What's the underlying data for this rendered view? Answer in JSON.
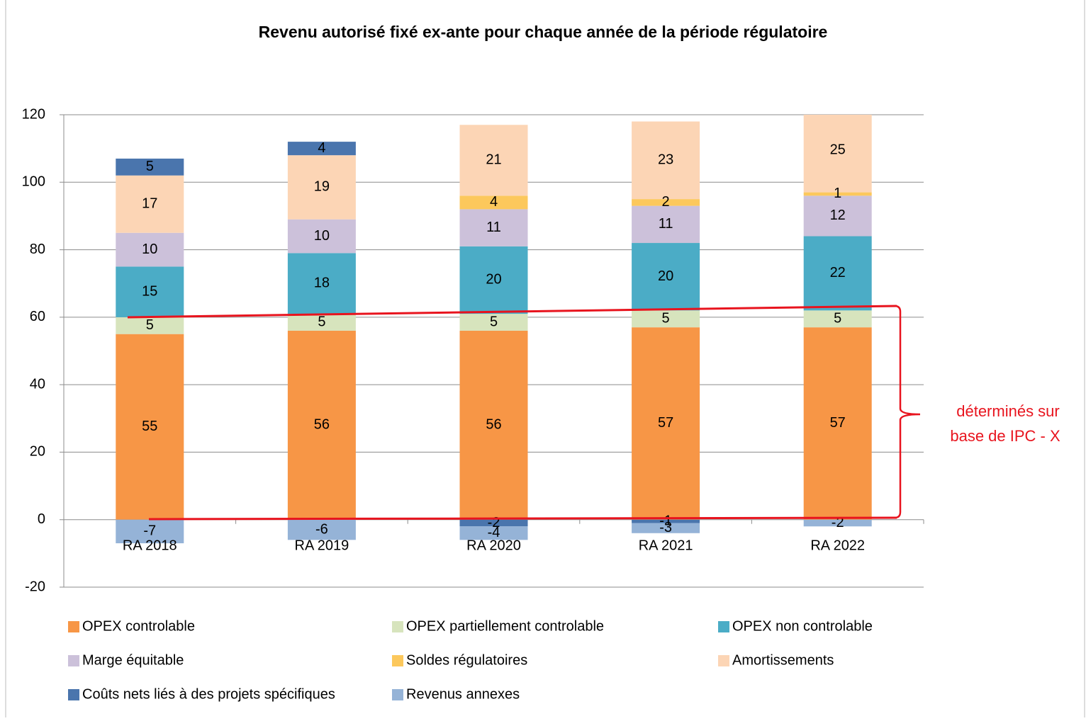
{
  "chart_data": {
    "type": "stacked_bar",
    "title": "Revenu autorisé fixé ex-ante pour chaque année de la période régulatoire",
    "categories": [
      "RA 2018",
      "RA 2019",
      "RA 2020",
      "RA 2021",
      "RA 2022"
    ],
    "series": [
      {
        "name": "OPEX controlable",
        "color": "#f79646",
        "values": [
          55,
          56,
          56,
          57,
          57
        ]
      },
      {
        "name": "OPEX partiellement controlable",
        "color": "#d7e4bd",
        "values": [
          5,
          5,
          5,
          5,
          5
        ]
      },
      {
        "name": "OPEX non controlable",
        "color": "#4bacc6",
        "values": [
          15,
          18,
          20,
          20,
          22
        ]
      },
      {
        "name": "Marge équitable",
        "color": "#ccc1da",
        "values": [
          10,
          10,
          11,
          11,
          12
        ]
      },
      {
        "name": "Soldes régulatoires",
        "color": "#fcc85c",
        "values": [
          null,
          null,
          4,
          2,
          1
        ]
      },
      {
        "name": "Amortissements",
        "color": "#fcd5b5",
        "values": [
          17,
          19,
          21,
          23,
          25
        ]
      },
      {
        "name": "Coûts nets liés à des projets spécifiques",
        "color": "#4a75ad",
        "values": [
          5,
          4,
          -2,
          -1,
          null
        ]
      },
      {
        "name": "Revenus annexes",
        "color": "#95b3d7",
        "values": [
          -7,
          -6,
          -4,
          -3,
          -2
        ]
      }
    ],
    "ylim": [
      -20,
      120
    ],
    "yticks": [
      -20,
      0,
      20,
      40,
      60,
      80,
      100,
      120
    ],
    "grid": true,
    "annotation": [
      "déterminés sur",
      "base de IPC - X"
    ]
  }
}
